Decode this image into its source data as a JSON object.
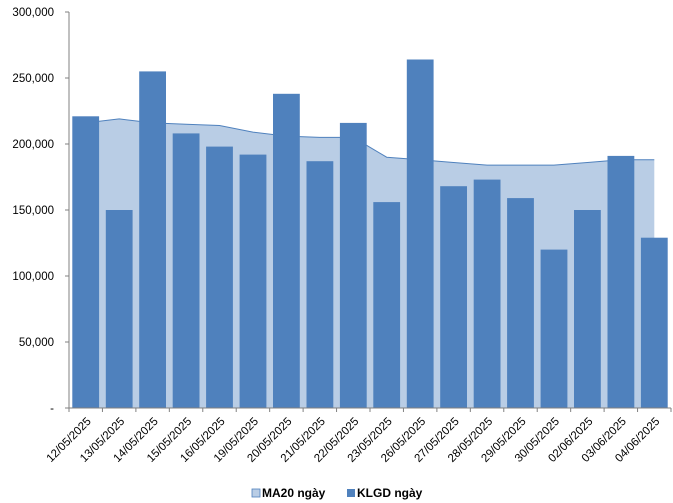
{
  "chart_data": {
    "type": "bar",
    "categories": [
      "12/05/2025",
      "13/05/2025",
      "14/05/2025",
      "15/05/2025",
      "16/05/2025",
      "19/05/2025",
      "20/05/2025",
      "21/05/2025",
      "22/05/2025",
      "23/05/2025",
      "26/05/2025",
      "27/05/2025",
      "28/05/2025",
      "29/05/2025",
      "30/05/2025",
      "02/06/2025",
      "03/06/2025",
      "04/06/2025"
    ],
    "series": [
      {
        "name": "MA20 ngày",
        "kind": "area",
        "color": "#b9cde5",
        "line_color": "#4f81bd",
        "values": [
          216000,
          219000,
          216000,
          215000,
          214000,
          209000,
          206000,
          205000,
          205000,
          190000,
          188000,
          186000,
          184000,
          184000,
          184000,
          186000,
          188000,
          188000
        ]
      },
      {
        "name": "KLGD ngày",
        "kind": "bar",
        "color": "#4f81bd",
        "values": [
          221000,
          150000,
          255000,
          208000,
          198000,
          192000,
          238000,
          187000,
          216000,
          156000,
          264000,
          168000,
          173000,
          159000,
          120000,
          150000,
          191000,
          129000
        ]
      }
    ],
    "y_ticks": [
      "-",
      "50,000",
      "100,000",
      "150,000",
      "200,000",
      "250,000",
      "300,000"
    ],
    "ylim": [
      0,
      300000
    ],
    "legend_position": "bottom",
    "grid": false
  }
}
